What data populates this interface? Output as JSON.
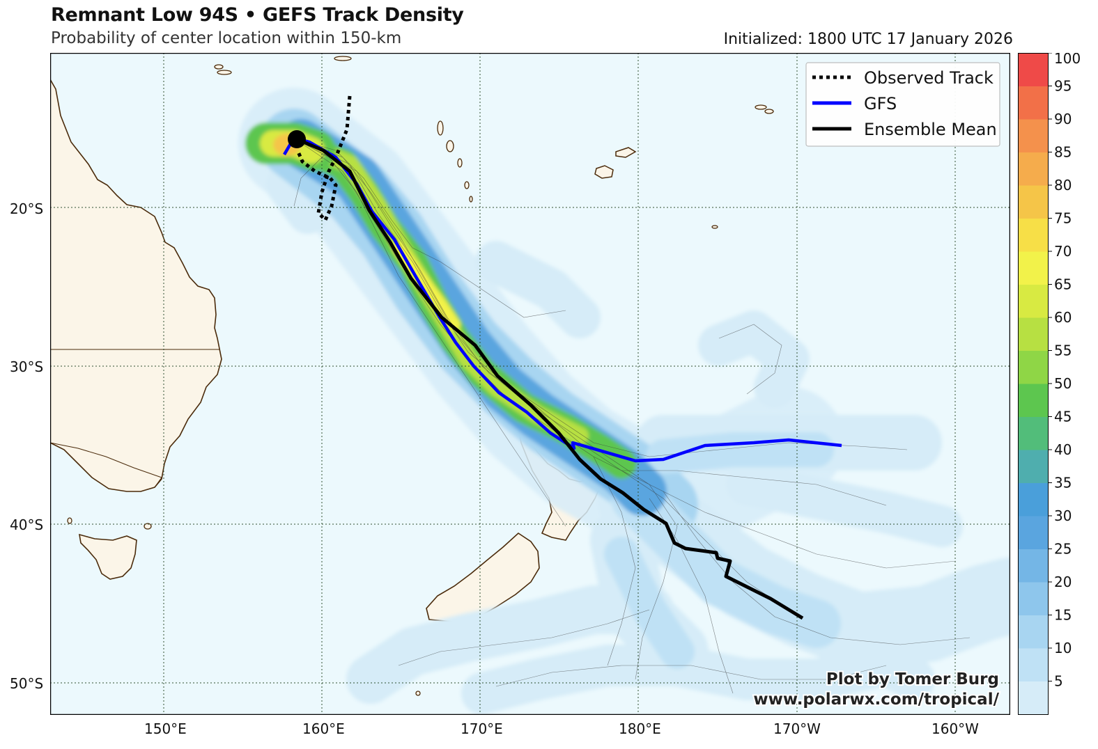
{
  "header": {
    "title": "Remnant Low 94S • GEFS Track Density",
    "subtitle": "Probability of center location within 150-km",
    "initialized": "Initialized: 1800 UTC 17 January 2026"
  },
  "map": {
    "lon_ticks": [
      "150°E",
      "160°E",
      "170°E",
      "180°E",
      "170°W",
      "160°W"
    ],
    "lat_ticks": [
      "20°S",
      "30°S",
      "40°S",
      "50°S"
    ],
    "colors": {
      "ocean": "#ecf9fd",
      "land": "#fbf5e8",
      "coast": "#4a2a0a",
      "grid": "#2f4f2f"
    }
  },
  "legend": {
    "observed": "Observed Track",
    "gfs": "GFS",
    "ensemble": "Ensemble Mean",
    "colors": {
      "observed": "#000000",
      "gfs": "#0000ff",
      "ensemble": "#000000"
    }
  },
  "colorbar": {
    "labels": [
      "5",
      "10",
      "15",
      "20",
      "25",
      "30",
      "35",
      "40",
      "45",
      "50",
      "55",
      "60",
      "65",
      "70",
      "75",
      "80",
      "85",
      "90",
      "95",
      "100"
    ],
    "colors": [
      "#d6ecf8",
      "#bfe1f5",
      "#a8d5f1",
      "#8ec6ec",
      "#74b6e6",
      "#5aa5df",
      "#4a9fda",
      "#4faeae",
      "#52bd7a",
      "#5dc64f",
      "#8fd646",
      "#b7e042",
      "#d8ea42",
      "#f2f24a",
      "#f7df47",
      "#f5c548",
      "#f5ac4c",
      "#f4914c",
      "#f27048",
      "#ef4a48"
    ]
  },
  "credit": {
    "line1": "Plot by Tomer Burg",
    "line2": "www.polarwx.com/tropical/"
  }
}
